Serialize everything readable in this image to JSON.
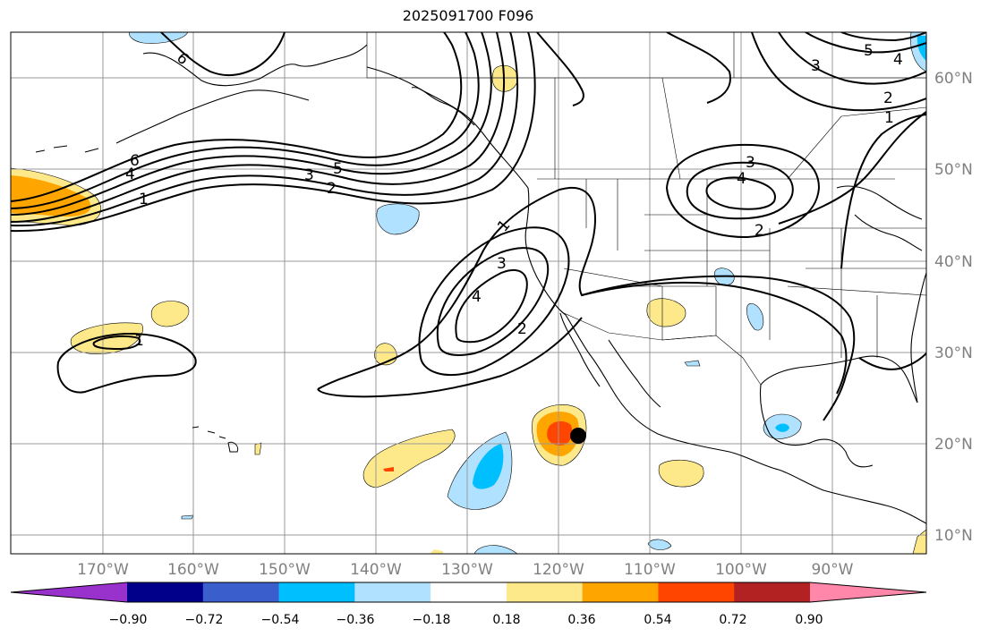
{
  "title": "2025091700 F096",
  "map": {
    "lon_labels": [
      "170°W",
      "160°W",
      "150°W",
      "140°W",
      "130°W",
      "120°W",
      "110°W",
      "100°W",
      "90°W"
    ],
    "lat_labels": [
      "60°N",
      "50°N",
      "40°N",
      "30°N",
      "20°N",
      "10°N"
    ],
    "contour_labels": [
      "6",
      "4",
      "3",
      "5",
      "2",
      "1",
      "6",
      "5",
      "4",
      "3",
      "2",
      "1",
      "1",
      "3",
      "4",
      "2",
      "3",
      "4",
      "2",
      "1"
    ],
    "storm_marker": {
      "lon": -118,
      "lat": 21
    }
  },
  "colorbar": {
    "colors": [
      "#9932cc",
      "#00008b",
      "#3a5fcd",
      "#00bfff",
      "#b0e2ff",
      "#ffffff",
      "#fde98a",
      "#ffa500",
      "#ff4500",
      "#b22222",
      "#ff88aa"
    ],
    "ticks": [
      "−0.90",
      "−0.72",
      "−0.54",
      "−0.36",
      "−0.18",
      "0.18",
      "0.36",
      "0.54",
      "0.72",
      "0.90"
    ]
  }
}
